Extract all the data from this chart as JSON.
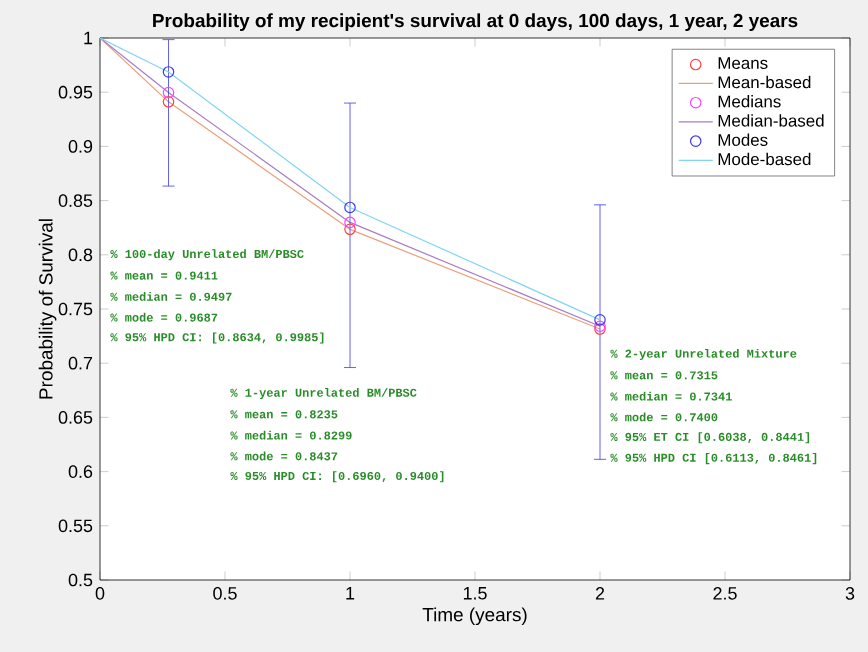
{
  "chart_data": {
    "type": "line",
    "title": "Probability of my recipient's survival at 0 days, 100 days, 1 year, 2 years",
    "xlabel": "Time (years)",
    "ylabel": "Probability of Survival",
    "xlim": [
      0,
      3
    ],
    "ylim": [
      0.5,
      1
    ],
    "xticks": [
      0,
      0.5,
      1,
      1.5,
      2,
      2.5,
      3
    ],
    "yticks": [
      0.5,
      0.55,
      0.6,
      0.65,
      0.7,
      0.75,
      0.8,
      0.85,
      0.9,
      0.95,
      1
    ],
    "legend": "top right",
    "grid": false,
    "series": [
      {
        "name": "Means",
        "type": "scatter",
        "marker": "circle",
        "color": "#ff4040",
        "x": [
          0.274,
          1,
          2
        ],
        "values": [
          0.9411,
          0.8235,
          0.7315
        ]
      },
      {
        "name": "Mean-based",
        "color": "#e8a07a",
        "x": [
          0,
          0.274,
          1,
          2
        ],
        "values": [
          1,
          0.9411,
          0.8235,
          0.7315
        ]
      },
      {
        "name": "Medians",
        "type": "scatter",
        "marker": "circle",
        "color": "#ff40ff",
        "x": [
          0.274,
          1,
          2
        ],
        "values": [
          0.9497,
          0.8299,
          0.7341
        ]
      },
      {
        "name": "Median-based",
        "color": "#a67cc4",
        "x": [
          0,
          0.274,
          1,
          2
        ],
        "values": [
          1,
          0.9497,
          0.8299,
          0.7341
        ]
      },
      {
        "name": "Modes",
        "type": "scatter",
        "marker": "circle",
        "color": "#3b3bf0",
        "x": [
          0.274,
          1,
          2
        ],
        "values": [
          0.9687,
          0.8437,
          0.74
        ],
        "errors": [
          [
            0.8634,
            0.9985
          ],
          [
            0.696,
            0.94
          ],
          [
            0.6113,
            0.8461
          ]
        ]
      },
      {
        "name": "Mode-based",
        "color": "#80d4f4",
        "x": [
          0,
          0.274,
          1,
          2
        ],
        "values": [
          1,
          0.9687,
          0.8437,
          0.74
        ]
      }
    ],
    "annotations": [
      "% 100-day Unrelated BM/PBSC",
      "% mean = 0.9411",
      "% median = 0.9497",
      "% mode = 0.9687",
      "% 95% HPD CI: [0.8634, 0.9985]",
      "% 1-year Unrelated BM/PBSC",
      "% mean = 0.8235",
      "% median = 0.8299",
      "% mode = 0.8437",
      "% 95% HPD CI: [0.6960, 0.9400]",
      "% 2-year Unrelated Mixture",
      "% mean = 0.7315",
      "% median = 0.7341",
      "% mode = 0.7400",
      "% 95% ET CI [0.6038, 0.8441]",
      "% 95% HPD CI [0.6113, 0.8461]"
    ]
  }
}
